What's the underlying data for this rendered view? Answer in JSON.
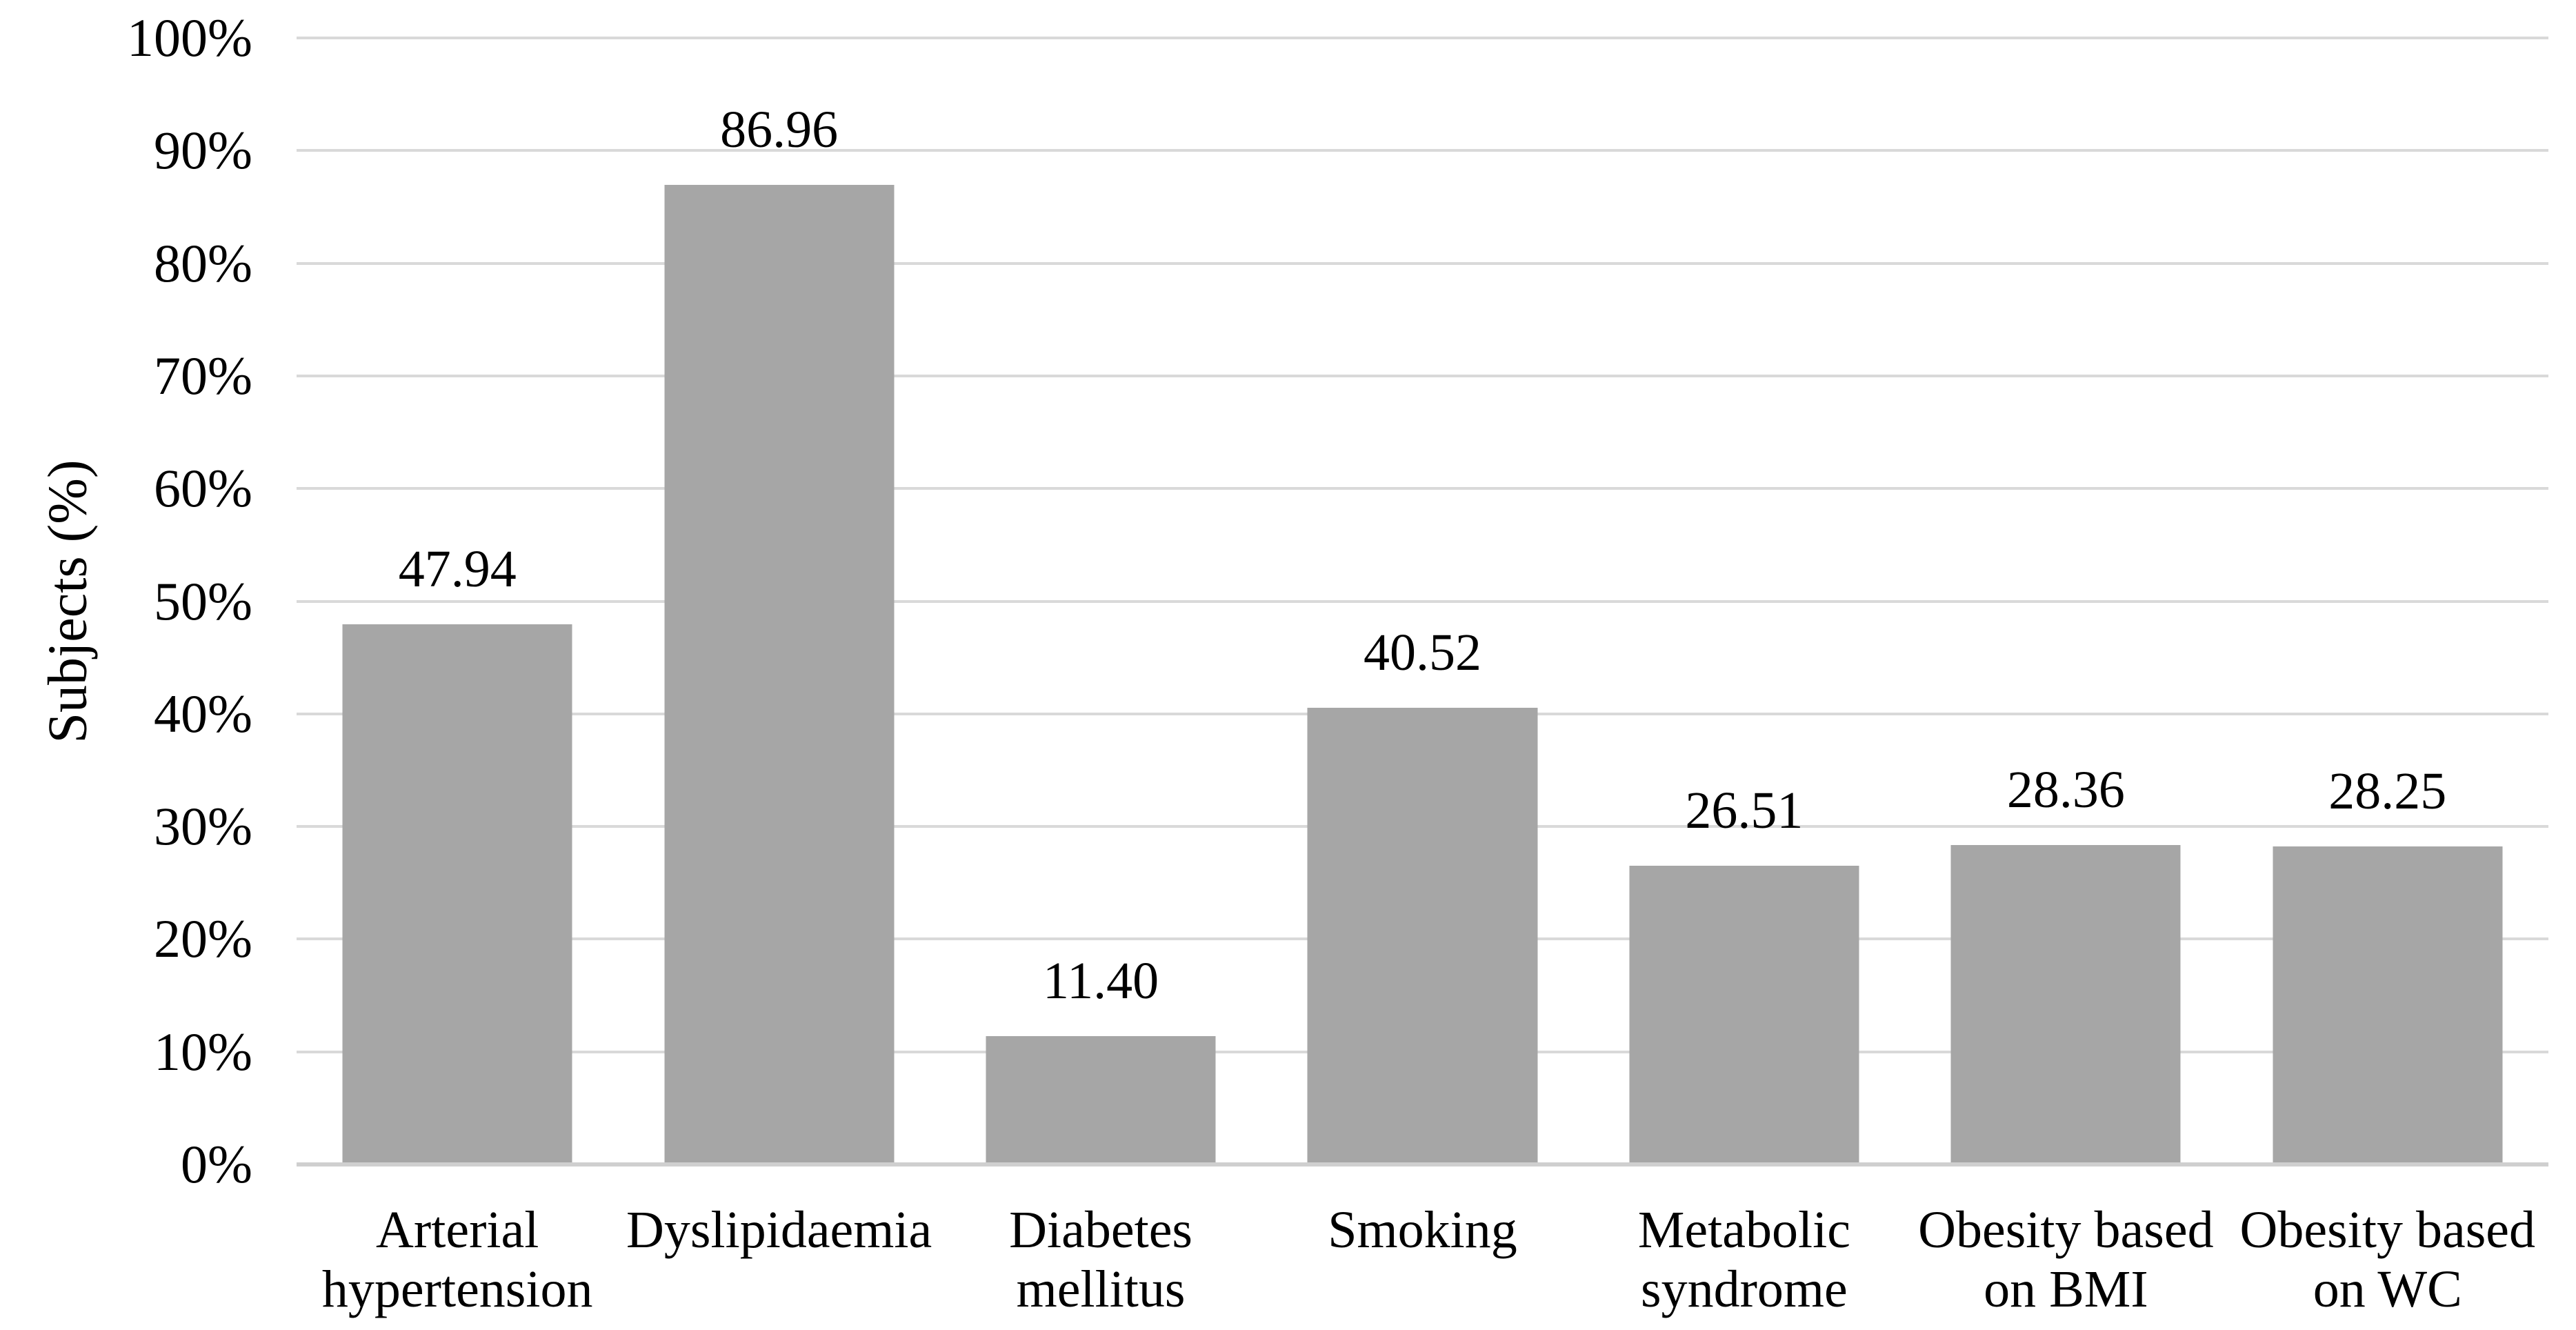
{
  "figure": {
    "background": "#ffffff"
  },
  "chart_data": {
    "type": "bar",
    "title": "",
    "xlabel": "",
    "ylabel": "Subjects (%)",
    "categories": [
      "Arterial\nhypertension",
      "Dyslipidaemia",
      "Diabetes\nmellitus",
      "Smoking",
      "Metabolic\nsyndrome",
      "Obesity based\non BMI",
      "Obesity based\non WC"
    ],
    "values": [
      47.94,
      86.96,
      11.4,
      40.52,
      26.51,
      28.36,
      28.25
    ],
    "value_labels": [
      "47.94",
      "86.96",
      "11.40",
      "40.52",
      "26.51",
      "28.36",
      "28.25"
    ],
    "ylim": [
      0,
      100
    ],
    "ytick_labels": [
      "0%",
      "10%",
      "20%",
      "30%",
      "40%",
      "50%",
      "60%",
      "70%",
      "80%",
      "90%",
      "100%"
    ],
    "grid": "horizontal",
    "legend": "none",
    "bar_color": "#a6a6a6",
    "gridline_color": "#d9d9d9",
    "axis_line_color": "#cfcfcf",
    "text_color": "#000000"
  }
}
